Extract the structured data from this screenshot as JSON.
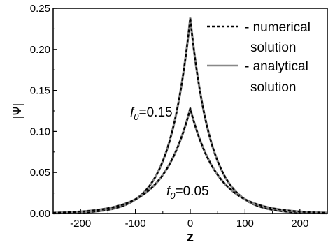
{
  "chart_data": {
    "type": "line",
    "xlabel": "z",
    "ylabel": "|Ψ|",
    "xlim": [
      -250,
      250
    ],
    "ylim": [
      0,
      0.25
    ],
    "x_ticks": [
      -200,
      -100,
      0,
      100,
      200
    ],
    "y_ticks": [
      0.0,
      0.05,
      0.1,
      0.15,
      0.2,
      0.25
    ],
    "x_tick_labels": [
      "-200",
      "-100",
      "0",
      "100",
      "200"
    ],
    "y_tick_labels": [
      "0.00",
      "0.05",
      "0.10",
      "0.15",
      "0.20",
      "0.25"
    ],
    "grid": false,
    "legend": {
      "position": "top-right",
      "entries": [
        {
          "marker": "dashed",
          "color": "#000000",
          "text_line1": "- numerical",
          "text_line2": "solution"
        },
        {
          "marker": "solid",
          "color": "#888888",
          "text_line1": "- analytical",
          "text_line2": "solution"
        }
      ]
    },
    "curves": [
      {
        "f0": 0.15,
        "peak": 0.238,
        "decay_length": 38
      },
      {
        "f0": 0.05,
        "peak": 0.128,
        "decay_length": 50
      }
    ],
    "annotations": [
      {
        "symbol": "f",
        "subscript": "0",
        "text": "=0.15"
      },
      {
        "symbol": "f",
        "subscript": "0",
        "text": "=0.05"
      }
    ],
    "colors": {
      "numerical": "#000000",
      "analytical": "#888888"
    }
  }
}
